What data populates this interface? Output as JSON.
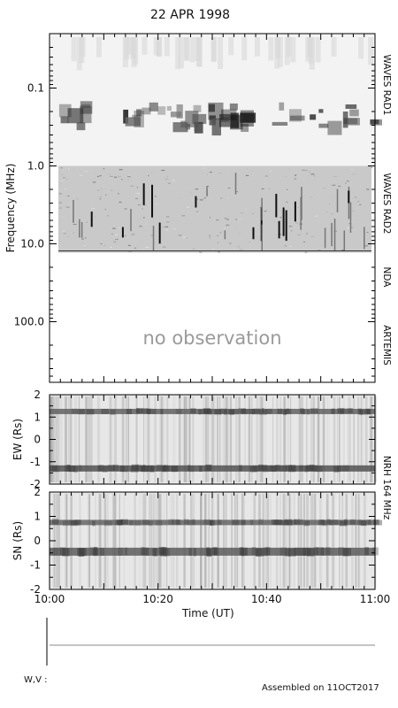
{
  "title": "22 APR 1998",
  "footer": "Assembled on 11OCT2017",
  "wv_label": "W,V :",
  "chart_data": [
    {
      "type": "heatmap",
      "name": "dynamic-spectrum",
      "ylabel": "Frequency (MHz)",
      "yscale": "log",
      "yreversed": true,
      "ylim": [
        0.02,
        600
      ],
      "ytick_labels": [
        "0.1",
        "1.0",
        "10.0",
        "100.0"
      ],
      "ytick_values": [
        0.1,
        1.0,
        10.0,
        100.0
      ],
      "xlim": [
        "10:00",
        "11:00"
      ],
      "instruments": [
        {
          "label": "WAVES RAD1",
          "freq_range": [
            0.02,
            1.0
          ]
        },
        {
          "label": "WAVES RAD2",
          "freq_range": [
            1.0,
            13.0
          ]
        },
        {
          "label": "NDA",
          "freq_range": [
            20,
            70
          ]
        },
        {
          "label": "ARTEMIS",
          "freq_range": [
            100,
            600
          ]
        }
      ],
      "annotation": "no observation"
    },
    {
      "type": "heatmap",
      "name": "nrh-ew",
      "ylabel": "EW (Rs)",
      "ylim": [
        -2,
        2
      ],
      "ytick_labels": [
        "2",
        "1",
        "0",
        "-1",
        "-2"
      ],
      "ytick_values": [
        2,
        1,
        0,
        -1,
        -2
      ],
      "xlim": [
        "10:00",
        "11:00"
      ]
    },
    {
      "type": "heatmap",
      "name": "nrh-sn",
      "ylabel": "SN (Rs)",
      "ylim": [
        -2,
        2
      ],
      "ytick_labels": [
        "2",
        "1",
        "0",
        "-1",
        "-2"
      ],
      "ytick_values": [
        2,
        1,
        0,
        -1,
        -2
      ],
      "xlim": [
        "10:00",
        "11:00"
      ],
      "xlabel": "Time (UT)",
      "xtick_labels": [
        "10:00",
        "10:20",
        "10:40",
        "11:00"
      ],
      "xtick_values": [
        0,
        20,
        40,
        60
      ]
    }
  ],
  "nrh_label": "NRH 164 MHz"
}
